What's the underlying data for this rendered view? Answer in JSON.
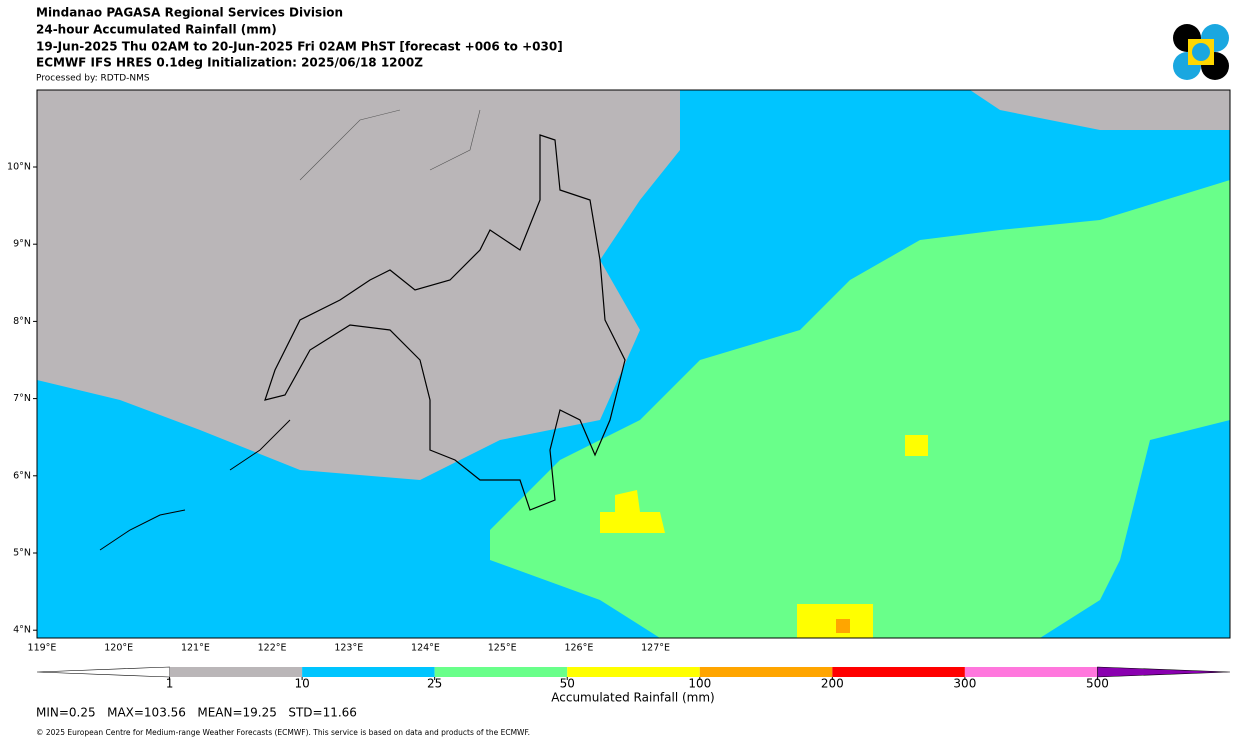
{
  "header": {
    "lines": [
      "Mindanao PAGASA Regional Services Division",
      "24-hour Accumulated Rainfall (mm)",
      "19-Jun-2025 Thu 02AM to 20-Jun-2025 Fri 02AM PhST [forecast +006 to +030]",
      "ECMWF IFS HRES 0.1deg Initialization: 2025/06/18 1200Z"
    ],
    "processed_by": "Processed by: RDTD-NMS"
  },
  "map": {
    "lat_ticks": [
      {
        "value": 10,
        "label": "10°N"
      },
      {
        "value": 9,
        "label": "9°N"
      },
      {
        "value": 8,
        "label": "8°N"
      },
      {
        "value": 7,
        "label": "7°N"
      },
      {
        "value": 6,
        "label": "6°N"
      },
      {
        "value": 5,
        "label": "5°N"
      },
      {
        "value": 4,
        "label": "4°N"
      }
    ],
    "lon_ticks": [
      {
        "value": 119,
        "label": "119°E"
      },
      {
        "value": 120,
        "label": "120°E"
      },
      {
        "value": 121,
        "label": "121°E"
      },
      {
        "value": 122,
        "label": "122°E"
      },
      {
        "value": 123,
        "label": "123°E"
      },
      {
        "value": 124,
        "label": "124°E"
      },
      {
        "value": 125,
        "label": "125°E"
      },
      {
        "value": 126,
        "label": "126°E"
      },
      {
        "value": 127,
        "label": "127°E"
      }
    ]
  },
  "colorbar": {
    "levels": [
      1,
      10,
      25,
      50,
      100,
      200,
      300,
      500
    ],
    "colors": [
      "#ffffff",
      "#bab6b8",
      "#00c5ff",
      "#69ff8a",
      "#ffff00",
      "#ffa500",
      "#ff0000",
      "#ff77dd",
      "#8a00b0"
    ],
    "label": "Accumulated Rainfall (mm)"
  },
  "stats": "MIN=0.25   MAX=103.56   MEAN=19.25   STD=11.66",
  "footer": "© 2025 European Centre for Medium-range Weather Forecasts (ECMWF). This service is based on data and products of the ECMWF."
}
